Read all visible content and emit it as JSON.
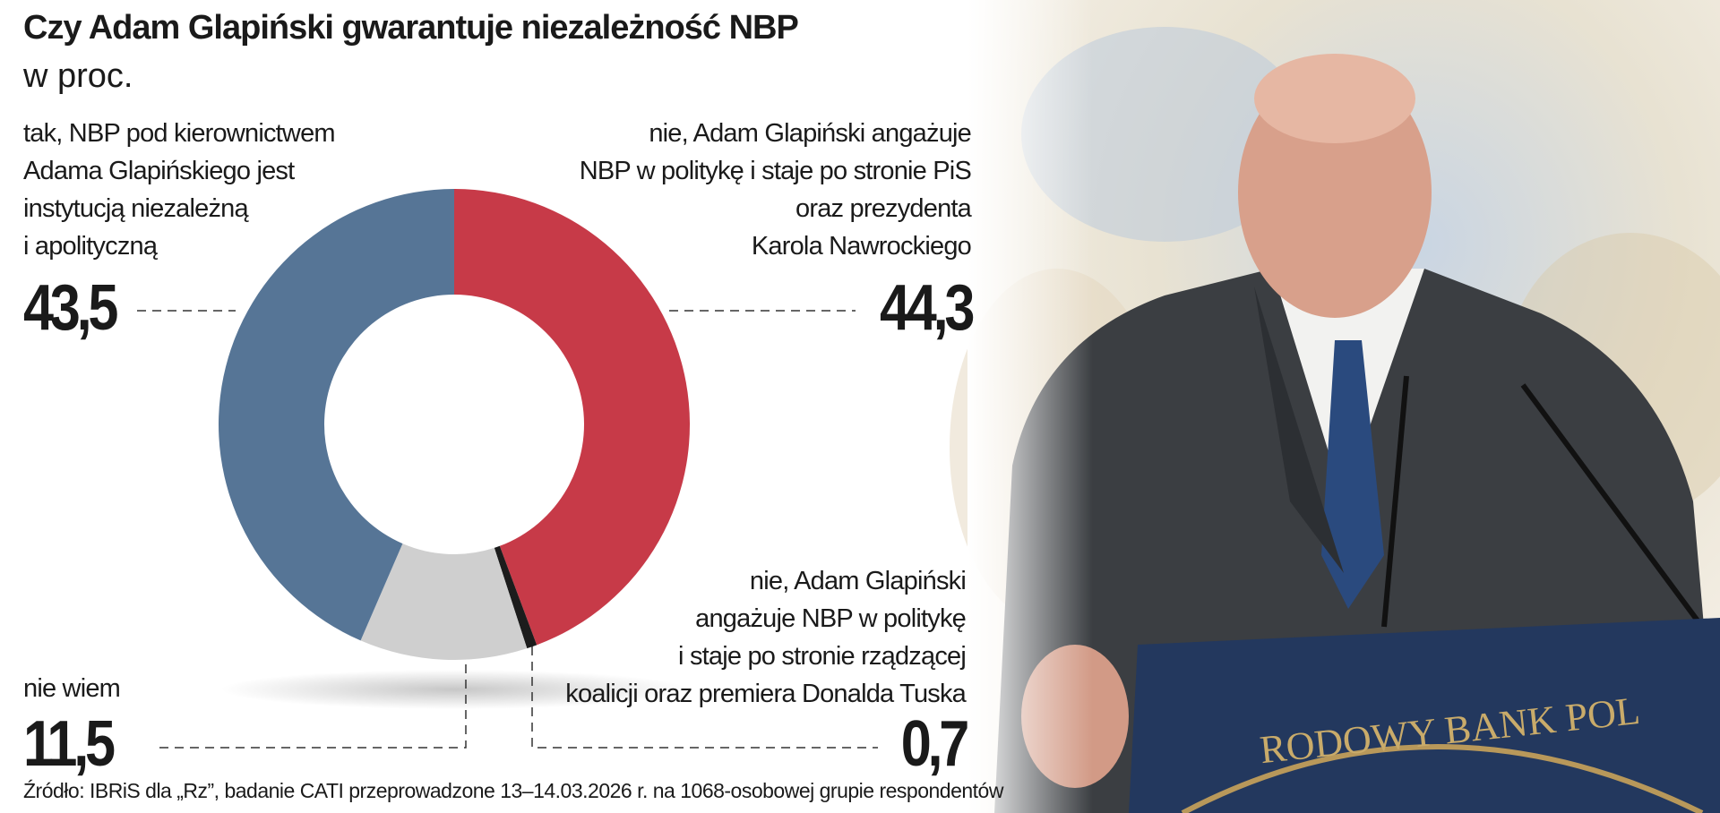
{
  "chart_data": {
    "type": "pie",
    "donut": true,
    "title": "Czy Adam Glapiński gwarantuje niezależność NBP",
    "subtitle": "w proc.",
    "categories": [
      "nie, Adam Glapiński angażuje\nNBP w politykę i staje po stronie PiS\noraz prezydenta\nKarola Nawrockiego",
      "nie, Adam Glapiński\nangażuje NBP w politykę\ni staje po stronie rządzącej\nkoalicji oraz premiera Donalda Tuska",
      "nie wiem",
      "tak, NBP pod kierownictwem\nAdama Glapińskiego jest\ninstytucją niezależną\ni apolityczną"
    ],
    "values": [
      44.3,
      0.7,
      11.5,
      43.5
    ],
    "value_labels": [
      "44,3",
      "0,7",
      "11,5",
      "43,5"
    ],
    "colors": [
      "#c73a48",
      "#1c1c1c",
      "#cfcfcf",
      "#567596"
    ],
    "source": "Źródło: IBRiS dla „Rz”, badanie CATI przeprowadzone 13–14.03.2026 r. na 1068-osobowej grupie respondentów"
  },
  "photo": {
    "podium_text": "RODOWY BANK POL"
  }
}
